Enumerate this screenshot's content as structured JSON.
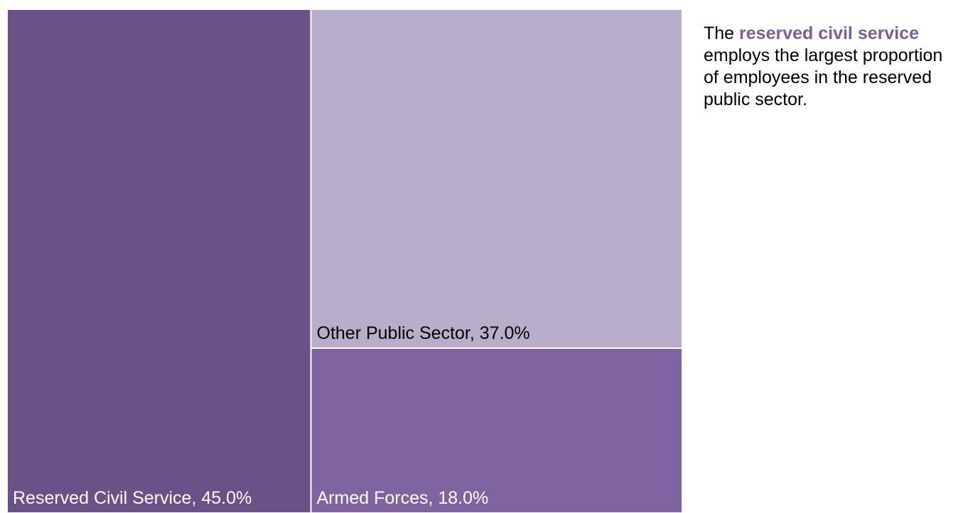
{
  "chart_data": {
    "type": "treemap",
    "categories": [
      "Reserved Civil Service",
      "Other Public Sector",
      "Armed Forces"
    ],
    "values": [
      45.0,
      37.0,
      18.0
    ],
    "labels": [
      "Reserved Civil Service, 45.0%",
      "Other Public Sector, 37.0%",
      "Armed Forces, 18.0%"
    ],
    "colors": [
      "#6a5187",
      "#b9aec9",
      "#8064a2"
    ],
    "label_colors": [
      "#ffffff",
      "#000000",
      "#ffffff"
    ],
    "unit": "%"
  },
  "annotation": {
    "prefix": "The ",
    "highlight": "reserved civil service",
    "suffix": " employs the largest proportion of employees in the reserved public sector.",
    "highlight_color": "#7b5f99"
  }
}
